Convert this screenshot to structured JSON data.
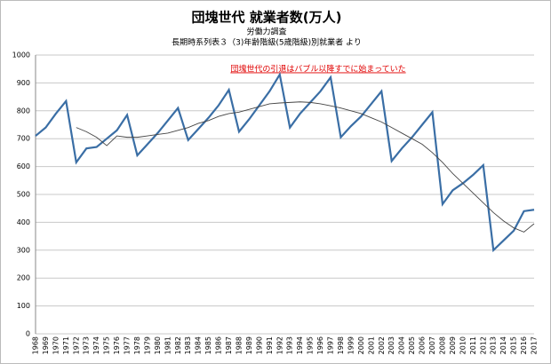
{
  "chart_data": {
    "type": "line",
    "title": "団塊世代 就業者数(万人)",
    "subtitle": "労働力調査",
    "source": "長期時系列表３（3)年齢階級(5歳階級)別就業者 より",
    "annotation": "団塊世代の引退はバブル以降すでに始まっていた",
    "categories": [
      "1968",
      "1969",
      "1970",
      "1971",
      "1972",
      "1973",
      "1974",
      "1975",
      "1976",
      "1977",
      "1978",
      "1979",
      "1980",
      "1981",
      "1982",
      "1983",
      "1984",
      "1985",
      "1986",
      "1987",
      "1988",
      "1989",
      "1990",
      "1991",
      "1992",
      "1993",
      "1994",
      "1995",
      "1996",
      "1997",
      "1998",
      "1999",
      "2000",
      "2001",
      "2002",
      "2003",
      "2004",
      "2005",
      "2006",
      "2007",
      "2008",
      "2009",
      "2010",
      "2011",
      "2012",
      "2013",
      "2014",
      "2015",
      "2016",
      "2017"
    ],
    "series": [
      {
        "color": "#3a6ea5",
        "values": [
          710,
          740,
          790,
          835,
          615,
          665,
          670,
          700,
          730,
          785,
          640,
          680,
          720,
          765,
          810,
          695,
          735,
          775,
          820,
          875,
          725,
          770,
          820,
          870,
          930,
          740,
          790,
          830,
          870,
          920,
          705,
          745,
          780,
          825,
          870,
          620,
          665,
          705,
          750,
          795,
          465,
          515,
          540,
          570,
          605,
          300,
          335,
          370,
          440,
          445
        ]
      },
      {
        "color": "#444444",
        "values": [
          null,
          null,
          null,
          null,
          740,
          725,
          705,
          675,
          710,
          705,
          705,
          710,
          715,
          720,
          730,
          740,
          755,
          765,
          780,
          790,
          795,
          805,
          815,
          825,
          828,
          830,
          832,
          830,
          825,
          818,
          810,
          800,
          790,
          775,
          760,
          740,
          720,
          700,
          680,
          650,
          615,
          575,
          540,
          505,
          470,
          435,
          405,
          380,
          365,
          395
        ]
      }
    ],
    "ylim": [
      0,
      1000
    ],
    "yticks": [
      0,
      100,
      200,
      300,
      400,
      500,
      600,
      700,
      800,
      900,
      1000
    ],
    "grid": true
  }
}
